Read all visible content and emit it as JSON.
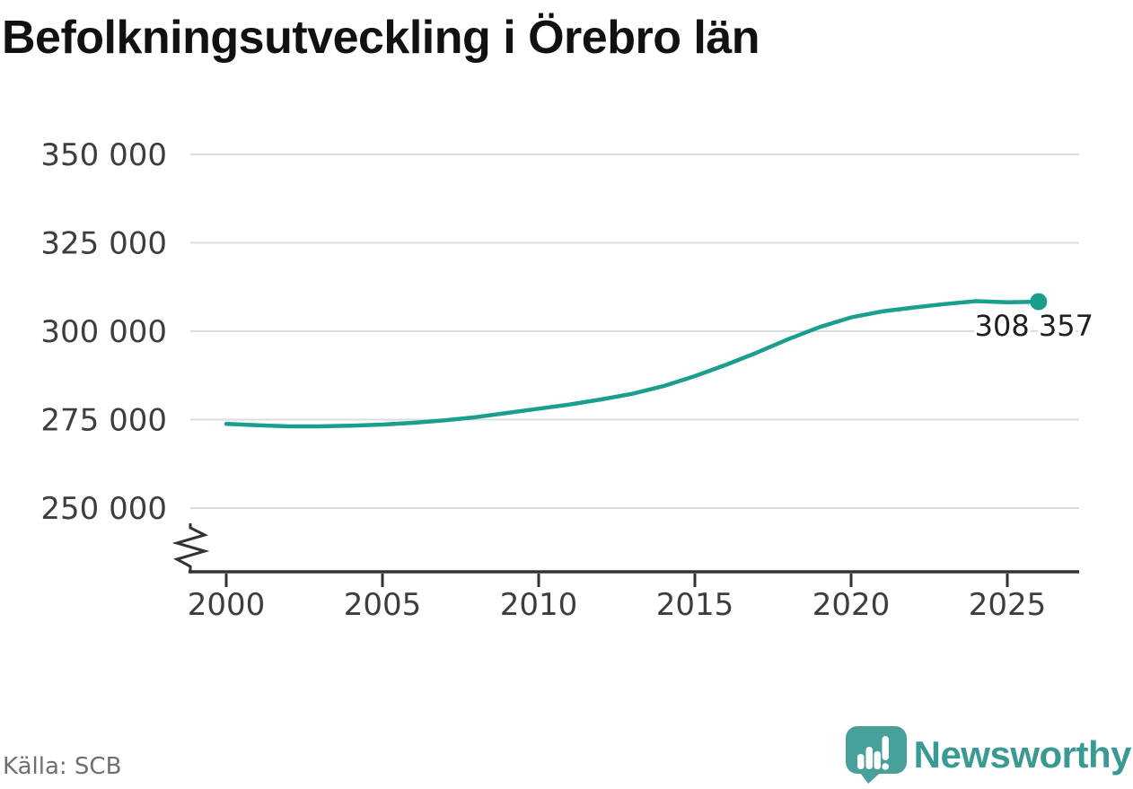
{
  "title": "Befolkningsutveckling i Örebro län",
  "source": "Källa: SCB",
  "branding": {
    "logo_text": "Newsworthy",
    "icon": "newsworthy-speech-bubble-chart-icon",
    "wordmark_color": "#3a9a93",
    "icon_color": "#47a099"
  },
  "chart_data": {
    "type": "line",
    "title": "Befolkningsutveckling i Örebro län",
    "x": [
      2000,
      2001,
      2002,
      2003,
      2004,
      2005,
      2006,
      2007,
      2008,
      2009,
      2010,
      2011,
      2012,
      2013,
      2014,
      2015,
      2016,
      2017,
      2018,
      2019,
      2020,
      2021,
      2022,
      2023,
      2024,
      2025,
      2026
    ],
    "series": [
      {
        "name": "Befolkning i Örebro län",
        "color": "#1a9e8d",
        "values": [
          273800,
          273400,
          273100,
          273100,
          273300,
          273600,
          274100,
          274800,
          275700,
          276900,
          278100,
          279300,
          280700,
          282300,
          284500,
          287300,
          290500,
          294000,
          297800,
          301200,
          303900,
          305600,
          306700,
          307700,
          308500,
          308200,
          308357
        ]
      }
    ],
    "end_label": "308 357",
    "end_value": 308357,
    "xlabel": "",
    "ylabel": "",
    "xticks": [
      2000,
      2005,
      2010,
      2015,
      2020,
      2025
    ],
    "yticks": [
      {
        "label": "350 000",
        "value": 350000
      },
      {
        "label": "325 000",
        "value": 325000
      },
      {
        "label": "300 000",
        "value": 300000
      },
      {
        "label": "275 000",
        "value": 275000
      },
      {
        "label": "250 000",
        "value": 250000
      }
    ],
    "ylim_display": [
      250000,
      350000
    ],
    "grid": true,
    "axis_break": true,
    "legend": "none"
  }
}
